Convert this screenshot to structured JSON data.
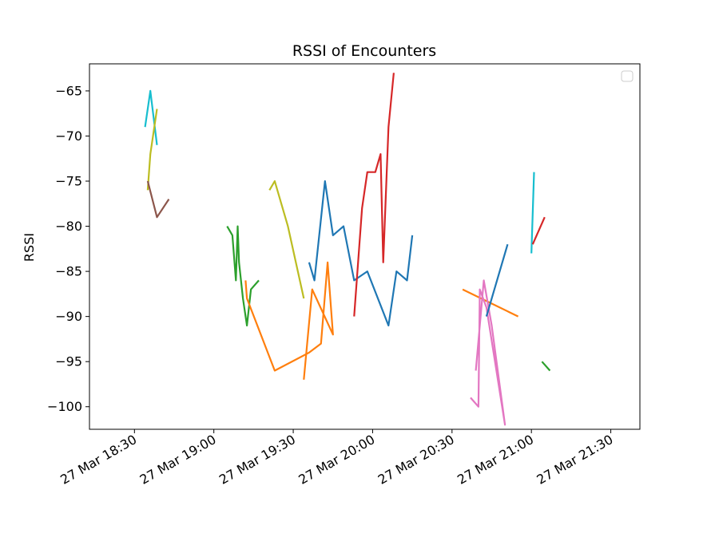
{
  "chart_data": {
    "type": "line",
    "title": "RSSI of Encounters",
    "xlabel": "",
    "ylabel": "RSSI",
    "x_axis_type": "time",
    "xlim": [
      "2021-03-27T18:13",
      "2021-03-27T21:41"
    ],
    "ylim": [
      -102.5,
      -62.0
    ],
    "x_ticks": [
      "2021-03-27T18:30",
      "2021-03-27T19:00",
      "2021-03-27T19:30",
      "2021-03-27T20:00",
      "2021-03-27T20:30",
      "2021-03-27T21:00",
      "2021-03-27T21:30"
    ],
    "x_tick_labels": [
      "27 Mar 18:30",
      "27 Mar 19:00",
      "27 Mar 19:30",
      "27 Mar 20:00",
      "27 Mar 20:30",
      "27 Mar 21:00",
      "27 Mar 21:30"
    ],
    "y_ticks": [
      -65,
      -70,
      -75,
      -80,
      -85,
      -90,
      -95,
      -100
    ],
    "y_tick_labels": [
      "−65",
      "−70",
      "−75",
      "−80",
      "−85",
      "−90",
      "−95",
      "−100"
    ],
    "grid": false,
    "legend": {
      "position": "upper-right",
      "entries": []
    },
    "series": [
      {
        "color": "#17becf",
        "x": [
          "2021-03-27T18:34",
          "2021-03-27T18:36",
          "2021-03-27T18:38:30"
        ],
        "y": [
          -69,
          -65,
          -71
        ]
      },
      {
        "color": "#bcbd22",
        "x": [
          "2021-03-27T18:35",
          "2021-03-27T18:36",
          "2021-03-27T18:38:30"
        ],
        "y": [
          -76,
          -72,
          -67
        ]
      },
      {
        "color": "#8c564b",
        "x": [
          "2021-03-27T18:35",
          "2021-03-27T18:38:30",
          "2021-03-27T18:43"
        ],
        "y": [
          -75,
          -79,
          -77
        ]
      },
      {
        "color": "#2ca02c",
        "x": [
          "2021-03-27T19:05",
          "2021-03-27T19:07",
          "2021-03-27T19:08:20",
          "2021-03-27T19:09",
          "2021-03-27T19:09:30",
          "2021-03-27T19:11",
          "2021-03-27T19:12:30",
          "2021-03-27T19:14",
          "2021-03-27T19:17"
        ],
        "y": [
          -80,
          -81,
          -86,
          -80,
          -84,
          -88,
          -91,
          -87,
          -86
        ]
      },
      {
        "color": "#ff7f0e",
        "x": [
          "2021-03-27T19:12",
          "2021-03-27T19:12:30",
          "2021-03-27T19:23",
          "2021-03-27T19:36",
          "2021-03-27T19:40:30",
          "2021-03-27T19:43",
          "2021-03-27T19:45",
          "2021-03-27T19:37:10",
          "2021-03-27T19:34"
        ],
        "y": [
          -86,
          -88,
          -96,
          -94,
          -93,
          -84,
          -92,
          -87,
          -97
        ]
      },
      {
        "color": "#bcbd22",
        "x": [
          "2021-03-27T19:21",
          "2021-03-27T19:23",
          "2021-03-27T19:28",
          "2021-03-27T19:34"
        ],
        "y": [
          -76,
          -75,
          -80,
          -88
        ]
      },
      {
        "color": "#1f77b4",
        "x": [
          "2021-03-27T19:36",
          "2021-03-27T19:38",
          "2021-03-27T19:42",
          "2021-03-27T19:45",
          "2021-03-27T19:49",
          "2021-03-27T19:53",
          "2021-03-27T19:58",
          "2021-03-27T20:06",
          "2021-03-27T20:09",
          "2021-03-27T20:13",
          "2021-03-27T20:15"
        ],
        "y": [
          -84,
          -86,
          -75,
          -81,
          -80,
          -86,
          -85,
          -91,
          -85,
          -86,
          -81
        ]
      },
      {
        "color": "#d62728",
        "x": [
          "2021-03-27T19:53",
          "2021-03-27T19:56",
          "2021-03-27T19:58",
          "2021-03-27T19:59",
          "2021-03-27T20:01",
          "2021-03-27T20:03",
          "2021-03-27T20:04",
          "2021-03-27T20:06",
          "2021-03-27T20:08"
        ],
        "y": [
          -90,
          -78,
          -74,
          -74,
          -74,
          -72,
          -84,
          -69,
          -63
        ]
      },
      {
        "color": "#ff7f0e",
        "x": [
          "2021-03-27T20:34",
          "2021-03-27T20:55"
        ],
        "y": [
          -87,
          -90
        ]
      },
      {
        "color": "#e377c2",
        "x": [
          "2021-03-27T20:37",
          "2021-03-27T20:40",
          "2021-03-27T20:40:30",
          "2021-03-27T20:43",
          "2021-03-27T20:50",
          "2021-03-27T20:45",
          "2021-03-27T20:42",
          "2021-03-27T20:39"
        ],
        "y": [
          -99,
          -100,
          -87,
          -89,
          -102,
          -91,
          -86,
          -96
        ]
      },
      {
        "color": "#1f77b4",
        "x": [
          "2021-03-27T20:43",
          "2021-03-27T20:51"
        ],
        "y": [
          -90,
          -82
        ]
      },
      {
        "color": "#17becf",
        "x": [
          "2021-03-27T21:00",
          "2021-03-27T21:01"
        ],
        "y": [
          -83,
          -74
        ]
      },
      {
        "color": "#d62728",
        "x": [
          "2021-03-27T21:00:30",
          "2021-03-27T21:05"
        ],
        "y": [
          -82,
          -79
        ]
      },
      {
        "color": "#2ca02c",
        "x": [
          "2021-03-27T21:04",
          "2021-03-27T21:07"
        ],
        "y": [
          -95,
          -96
        ]
      }
    ]
  }
}
